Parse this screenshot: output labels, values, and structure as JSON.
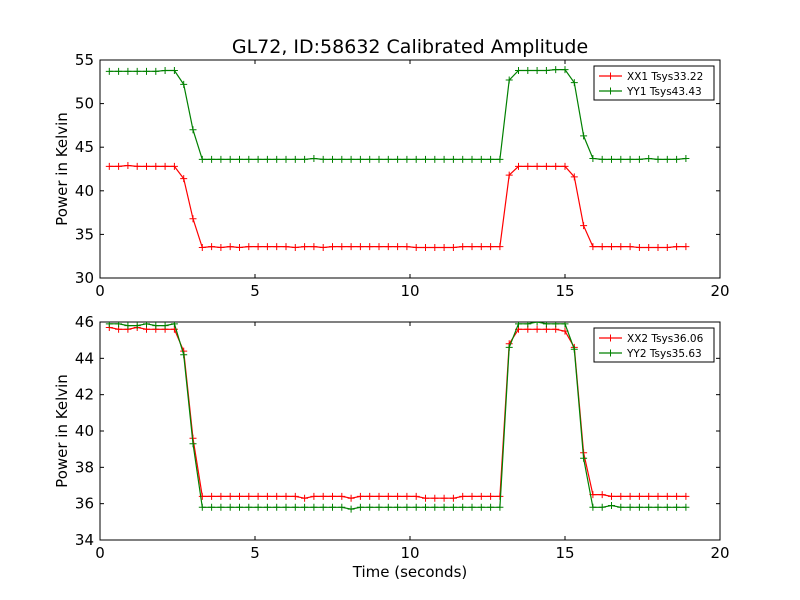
{
  "title": "GL72, ID:58632 Calibrated Amplitude",
  "chart_data": [
    {
      "type": "line",
      "title": "GL72, ID:58632 Calibrated Amplitude",
      "xlabel": "",
      "ylabel": "Power in Kelvin",
      "xlim": [
        0,
        20
      ],
      "ylim": [
        30,
        55
      ],
      "xticks": [
        0,
        5,
        10,
        15,
        20
      ],
      "yticks": [
        30,
        35,
        40,
        45,
        50,
        55
      ],
      "grid": false,
      "legend_position": "top-right",
      "x": [
        0.3,
        0.6,
        0.9,
        1.2,
        1.5,
        1.8,
        2.1,
        2.4,
        2.7,
        3.0,
        3.3,
        3.6,
        3.9,
        4.2,
        4.5,
        4.8,
        5.1,
        5.4,
        5.7,
        6.0,
        6.3,
        6.6,
        6.9,
        7.2,
        7.5,
        7.8,
        8.1,
        8.4,
        8.7,
        9.0,
        9.3,
        9.6,
        9.9,
        10.2,
        10.5,
        10.8,
        11.1,
        11.4,
        11.7,
        12.0,
        12.3,
        12.6,
        12.9,
        13.2,
        13.5,
        13.8,
        14.1,
        14.4,
        14.7,
        15.0,
        15.3,
        15.6,
        15.9,
        16.2,
        16.5,
        16.8,
        17.1,
        17.4,
        17.7,
        18.0,
        18.3,
        18.6,
        18.9
      ],
      "series": [
        {
          "name": "XX1 Tsys33.22",
          "color": "#ff0000",
          "values": [
            42.8,
            42.8,
            42.9,
            42.8,
            42.8,
            42.8,
            42.8,
            42.8,
            41.4,
            36.8,
            33.5,
            33.6,
            33.5,
            33.6,
            33.5,
            33.6,
            33.6,
            33.6,
            33.6,
            33.6,
            33.5,
            33.6,
            33.6,
            33.5,
            33.6,
            33.6,
            33.6,
            33.6,
            33.6,
            33.6,
            33.6,
            33.6,
            33.6,
            33.5,
            33.5,
            33.5,
            33.5,
            33.5,
            33.6,
            33.6,
            33.6,
            33.6,
            33.6,
            41.8,
            42.8,
            42.8,
            42.8,
            42.8,
            42.8,
            42.8,
            41.6,
            36.0,
            33.6,
            33.6,
            33.6,
            33.6,
            33.6,
            33.5,
            33.5,
            33.5,
            33.5,
            33.6,
            33.6
          ]
        },
        {
          "name": "YY1 Tsys43.43",
          "color": "#008000",
          "values": [
            53.7,
            53.7,
            53.7,
            53.7,
            53.7,
            53.7,
            53.8,
            53.8,
            52.2,
            47.0,
            43.6,
            43.6,
            43.6,
            43.6,
            43.6,
            43.6,
            43.6,
            43.6,
            43.6,
            43.6,
            43.6,
            43.6,
            43.7,
            43.6,
            43.6,
            43.6,
            43.6,
            43.6,
            43.6,
            43.6,
            43.6,
            43.6,
            43.6,
            43.6,
            43.6,
            43.6,
            43.6,
            43.6,
            43.6,
            43.6,
            43.6,
            43.6,
            43.6,
            52.7,
            53.8,
            53.8,
            53.8,
            53.8,
            53.9,
            53.9,
            52.4,
            46.3,
            43.7,
            43.6,
            43.6,
            43.6,
            43.6,
            43.6,
            43.7,
            43.6,
            43.6,
            43.6,
            43.7
          ]
        }
      ]
    },
    {
      "type": "line",
      "title": "",
      "xlabel": "Time (seconds)",
      "ylabel": "Power in Kelvin",
      "xlim": [
        0,
        20
      ],
      "ylim": [
        34,
        46
      ],
      "xticks": [
        0,
        5,
        10,
        15,
        20
      ],
      "yticks": [
        34,
        36,
        38,
        40,
        42,
        44,
        46
      ],
      "grid": false,
      "legend_position": "top-right",
      "x": [
        0.3,
        0.6,
        0.9,
        1.2,
        1.5,
        1.8,
        2.1,
        2.4,
        2.7,
        3.0,
        3.3,
        3.6,
        3.9,
        4.2,
        4.5,
        4.8,
        5.1,
        5.4,
        5.7,
        6.0,
        6.3,
        6.6,
        6.9,
        7.2,
        7.5,
        7.8,
        8.1,
        8.4,
        8.7,
        9.0,
        9.3,
        9.6,
        9.9,
        10.2,
        10.5,
        10.8,
        11.1,
        11.4,
        11.7,
        12.0,
        12.3,
        12.6,
        12.9,
        13.2,
        13.5,
        13.8,
        14.1,
        14.4,
        14.7,
        15.0,
        15.3,
        15.6,
        15.9,
        16.2,
        16.5,
        16.8,
        17.1,
        17.4,
        17.7,
        18.0,
        18.3,
        18.6,
        18.9
      ],
      "series": [
        {
          "name": "XX2 Tsys36.06",
          "color": "#ff0000",
          "values": [
            45.7,
            45.6,
            45.6,
            45.7,
            45.6,
            45.6,
            45.6,
            45.6,
            44.4,
            39.6,
            36.4,
            36.4,
            36.4,
            36.4,
            36.4,
            36.4,
            36.4,
            36.4,
            36.4,
            36.4,
            36.4,
            36.3,
            36.4,
            36.4,
            36.4,
            36.4,
            36.3,
            36.4,
            36.4,
            36.4,
            36.4,
            36.4,
            36.4,
            36.4,
            36.3,
            36.3,
            36.3,
            36.3,
            36.4,
            36.4,
            36.4,
            36.4,
            36.4,
            44.8,
            45.6,
            45.6,
            45.6,
            45.6,
            45.6,
            45.5,
            44.6,
            38.8,
            36.5,
            36.5,
            36.4,
            36.4,
            36.4,
            36.4,
            36.4,
            36.4,
            36.4,
            36.4,
            36.4
          ]
        },
        {
          "name": "YY2 Tsys35.63",
          "color": "#008000",
          "values": [
            45.9,
            45.9,
            45.8,
            45.8,
            45.9,
            45.8,
            45.8,
            45.9,
            44.2,
            39.3,
            35.8,
            35.8,
            35.8,
            35.8,
            35.8,
            35.8,
            35.8,
            35.8,
            35.8,
            35.8,
            35.8,
            35.8,
            35.8,
            35.8,
            35.8,
            35.8,
            35.7,
            35.8,
            35.8,
            35.8,
            35.8,
            35.8,
            35.8,
            35.8,
            35.8,
            35.8,
            35.8,
            35.8,
            35.8,
            35.8,
            35.8,
            35.8,
            35.8,
            44.6,
            45.9,
            45.9,
            46.0,
            45.9,
            45.9,
            45.9,
            44.5,
            38.5,
            35.8,
            35.8,
            35.9,
            35.8,
            35.8,
            35.8,
            35.8,
            35.8,
            35.8,
            35.8,
            35.8
          ]
        }
      ]
    }
  ]
}
